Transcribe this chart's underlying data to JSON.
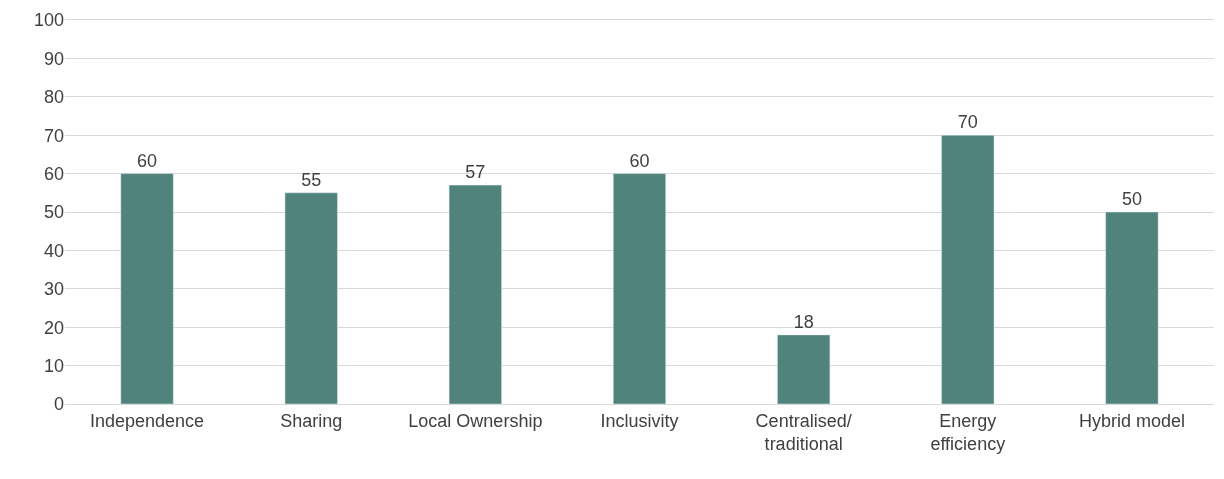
{
  "chart_data": {
    "type": "bar",
    "categories": [
      "Independence",
      "Sharing",
      "Local Ownership",
      "Inclusivity",
      "Centralised/traditional",
      "Energy efficiency",
      "Hybrid model"
    ],
    "values": [
      60,
      55,
      57,
      60,
      18,
      70,
      50
    ],
    "color": "#4f837b",
    "ylim": [
      0,
      100
    ],
    "yticks": [
      0,
      10,
      20,
      30,
      40,
      50,
      60,
      70,
      80,
      90,
      100
    ],
    "grid": "y",
    "data_labels": true
  }
}
